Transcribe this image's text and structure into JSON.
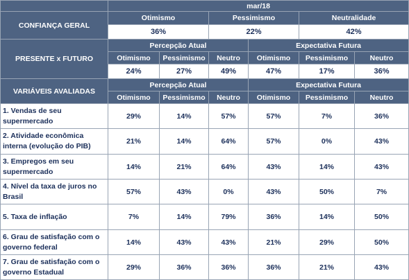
{
  "period": "mar/18",
  "confianca": {
    "label": "CONFIANÇA GERAL",
    "headers": [
      "Otimismo",
      "Pessimismo",
      "Neutralidade"
    ],
    "values": [
      "36%",
      "22%",
      "42%"
    ]
  },
  "presente_futuro": {
    "label": "PRESENTE x FUTURO",
    "groups": [
      "Percepção Atual",
      "Expectativa Futura"
    ],
    "sub_headers": [
      "Otimismo",
      "Pessimismo",
      "Neutro",
      "Otimismo",
      "Pessimismo",
      "Neutro"
    ],
    "values": [
      "24%",
      "27%",
      "49%",
      "47%",
      "17%",
      "36%"
    ]
  },
  "variaveis": {
    "label": "VARIÁVEIS AVALIADAS",
    "groups": [
      "Percepção Atual",
      "Expectativa Futura"
    ],
    "sub_headers": [
      "Otimismo",
      "Pessimismo",
      "Neutro",
      "Otimismo",
      "Pessimismo",
      "Neutro"
    ],
    "rows": [
      {
        "label": "1. Vendas de seu supermercado",
        "values": [
          "29%",
          "14%",
          "57%",
          "57%",
          "7%",
          "36%"
        ]
      },
      {
        "label": "2. Atividade econômica interna (evolução do PIB)",
        "values": [
          "21%",
          "14%",
          "64%",
          "57%",
          "0%",
          "43%"
        ]
      },
      {
        "label": "3. Empregos em seu supermercado",
        "values": [
          "14%",
          "21%",
          "64%",
          "43%",
          "14%",
          "43%"
        ]
      },
      {
        "label": "4. Nível da taxa de juros no Brasil",
        "values": [
          "57%",
          "43%",
          "0%",
          "43%",
          "50%",
          "7%"
        ]
      },
      {
        "label": "5. Taxa de inflação",
        "values": [
          "7%",
          "14%",
          "79%",
          "36%",
          "14%",
          "50%"
        ]
      },
      {
        "label": "6. Grau de satisfação com o governo federal",
        "values": [
          "14%",
          "43%",
          "43%",
          "21%",
          "29%",
          "50%"
        ]
      },
      {
        "label": "7. Grau de satisfação com o governo Estadual",
        "values": [
          "29%",
          "36%",
          "36%",
          "36%",
          "21%",
          "43%"
        ]
      }
    ]
  },
  "colors": {
    "header_bg": "#4e6382",
    "header_text": "#ffffff",
    "value_text": "#1b2f5a",
    "border": "#98a4b4"
  }
}
